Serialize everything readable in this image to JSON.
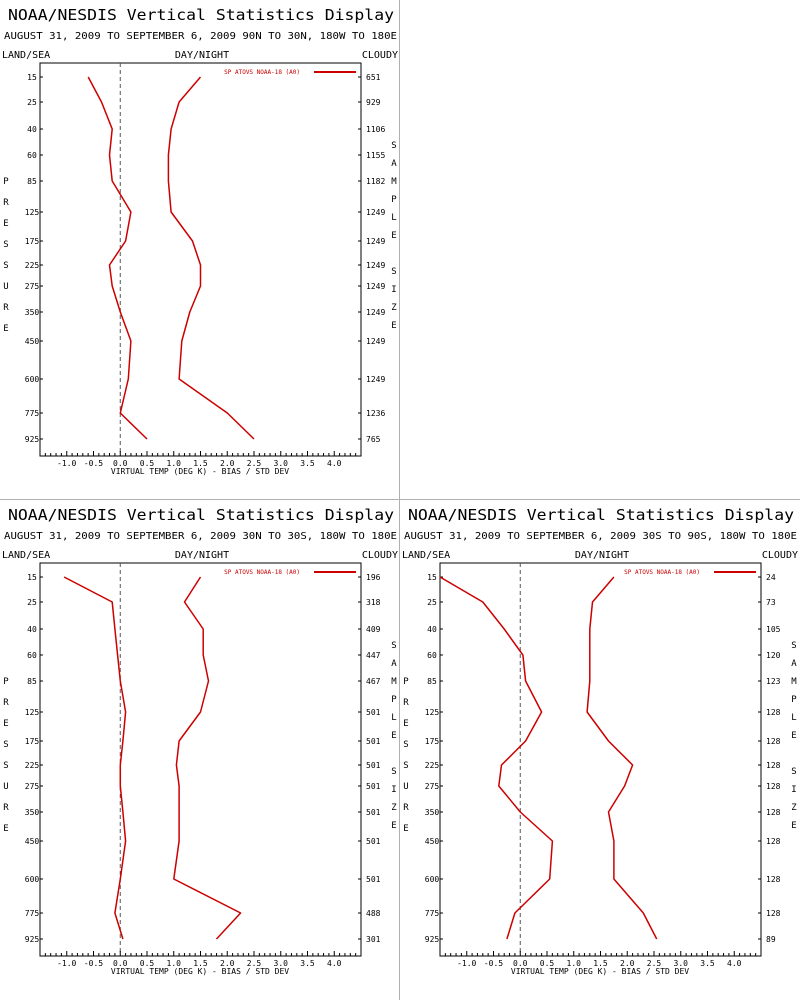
{
  "title": "NOAA/NESDIS Vertical Statistics Display",
  "header_labels": {
    "left": "LAND/SEA",
    "center": "DAY/NIGHT",
    "right": "CLOUDY"
  },
  "y_axis_letters": "PRESSURE",
  "right_axis_letters": "SAMPLE SIZE",
  "xlabel": "VIRTUAL TEMP (DEG K) - BIAS / STD DEV",
  "legend_label": "SP ATOVS NOAA-18 (A0)",
  "line_color": "#cc0000",
  "chart_data": [
    {
      "type": "line",
      "subtitle": "AUGUST 31, 2009 TO SEPTEMBER 6, 2009 90N TO 30N, 180W TO 180E",
      "pressure_levels": [
        "15",
        "25",
        "40",
        "60",
        "85",
        "125",
        "175",
        "225",
        "275",
        "350",
        "450",
        "600",
        "775",
        "925"
      ],
      "xlim": [
        -1.5,
        4.5
      ],
      "x_ticks": [
        "-1.0",
        "-0.5",
        "0.0",
        "0.5",
        "1.0",
        "1.5",
        "2.0",
        "2.5",
        "3.0",
        "3.5",
        "4.0"
      ],
      "sample_size": [
        "651",
        "929",
        "1106",
        "1155",
        "1182",
        "1249",
        "1249",
        "1249",
        "1249",
        "1249",
        "1249",
        "1249",
        "1236",
        "765"
      ],
      "series": [
        {
          "name": "SP ATOVS NOAA-18 (A0)",
          "kind": "bias",
          "values": [
            -0.6,
            -0.35,
            -0.15,
            -0.2,
            -0.15,
            0.2,
            0.1,
            -0.2,
            -0.15,
            0.0,
            0.2,
            0.15,
            0.0,
            0.5
          ]
        },
        {
          "kind": "std_dev",
          "values": [
            1.5,
            1.1,
            0.95,
            0.9,
            0.9,
            0.95,
            1.35,
            1.5,
            1.5,
            1.3,
            1.15,
            1.1,
            2.0,
            2.5
          ]
        }
      ]
    },
    {
      "type": "line",
      "subtitle": "AUGUST 31, 2009 TO SEPTEMBER 6, 2009 30N TO 30S, 180W TO 180E",
      "pressure_levels": [
        "15",
        "25",
        "40",
        "60",
        "85",
        "125",
        "175",
        "225",
        "275",
        "350",
        "450",
        "600",
        "775",
        "925"
      ],
      "xlim": [
        -1.5,
        4.5
      ],
      "x_ticks": [
        "-1.0",
        "-0.5",
        "0.0",
        "0.5",
        "1.0",
        "1.5",
        "2.0",
        "2.5",
        "3.0",
        "3.5",
        "4.0"
      ],
      "sample_size": [
        "196",
        "318",
        "409",
        "447",
        "467",
        "501",
        "501",
        "501",
        "501",
        "501",
        "501",
        "501",
        "488",
        "301"
      ],
      "series": [
        {
          "name": "SP ATOVS NOAA-18 (A0)",
          "kind": "bias",
          "values": [
            -1.05,
            -0.15,
            -0.1,
            -0.05,
            0.0,
            0.1,
            0.05,
            0.0,
            0.0,
            0.05,
            0.1,
            0.0,
            -0.1,
            0.05
          ]
        },
        {
          "kind": "std_dev",
          "values": [
            1.5,
            1.2,
            1.55,
            1.55,
            1.65,
            1.5,
            1.1,
            1.05,
            1.1,
            1.1,
            1.1,
            1.0,
            2.25,
            1.8
          ]
        }
      ]
    },
    {
      "type": "line",
      "subtitle": "AUGUST 31, 2009 TO SEPTEMBER 6, 2009 30S TO 90S, 180W TO 180E",
      "pressure_levels": [
        "15",
        "25",
        "40",
        "60",
        "85",
        "125",
        "175",
        "225",
        "275",
        "350",
        "450",
        "600",
        "775",
        "925"
      ],
      "xlim": [
        -1.5,
        4.5
      ],
      "x_ticks": [
        "-1.0",
        "-0.5",
        "0.0",
        "0.5",
        "1.0",
        "1.5",
        "2.0",
        "2.5",
        "3.0",
        "3.5",
        "4.0"
      ],
      "sample_size": [
        "24",
        "73",
        "105",
        "120",
        "123",
        "128",
        "128",
        "128",
        "128",
        "128",
        "128",
        "128",
        "128",
        "89"
      ],
      "series": [
        {
          "name": "SP ATOVS NOAA-18 (A0)",
          "kind": "bias",
          "values": [
            -1.5,
            -0.7,
            -0.3,
            0.05,
            0.1,
            0.4,
            0.1,
            -0.35,
            -0.4,
            0.0,
            0.6,
            0.55,
            -0.1,
            -0.25
          ]
        },
        {
          "kind": "std_dev",
          "values": [
            1.75,
            1.35,
            1.3,
            1.3,
            1.3,
            1.25,
            1.65,
            2.1,
            1.95,
            1.65,
            1.75,
            1.75,
            2.3,
            2.55
          ]
        }
      ]
    }
  ]
}
